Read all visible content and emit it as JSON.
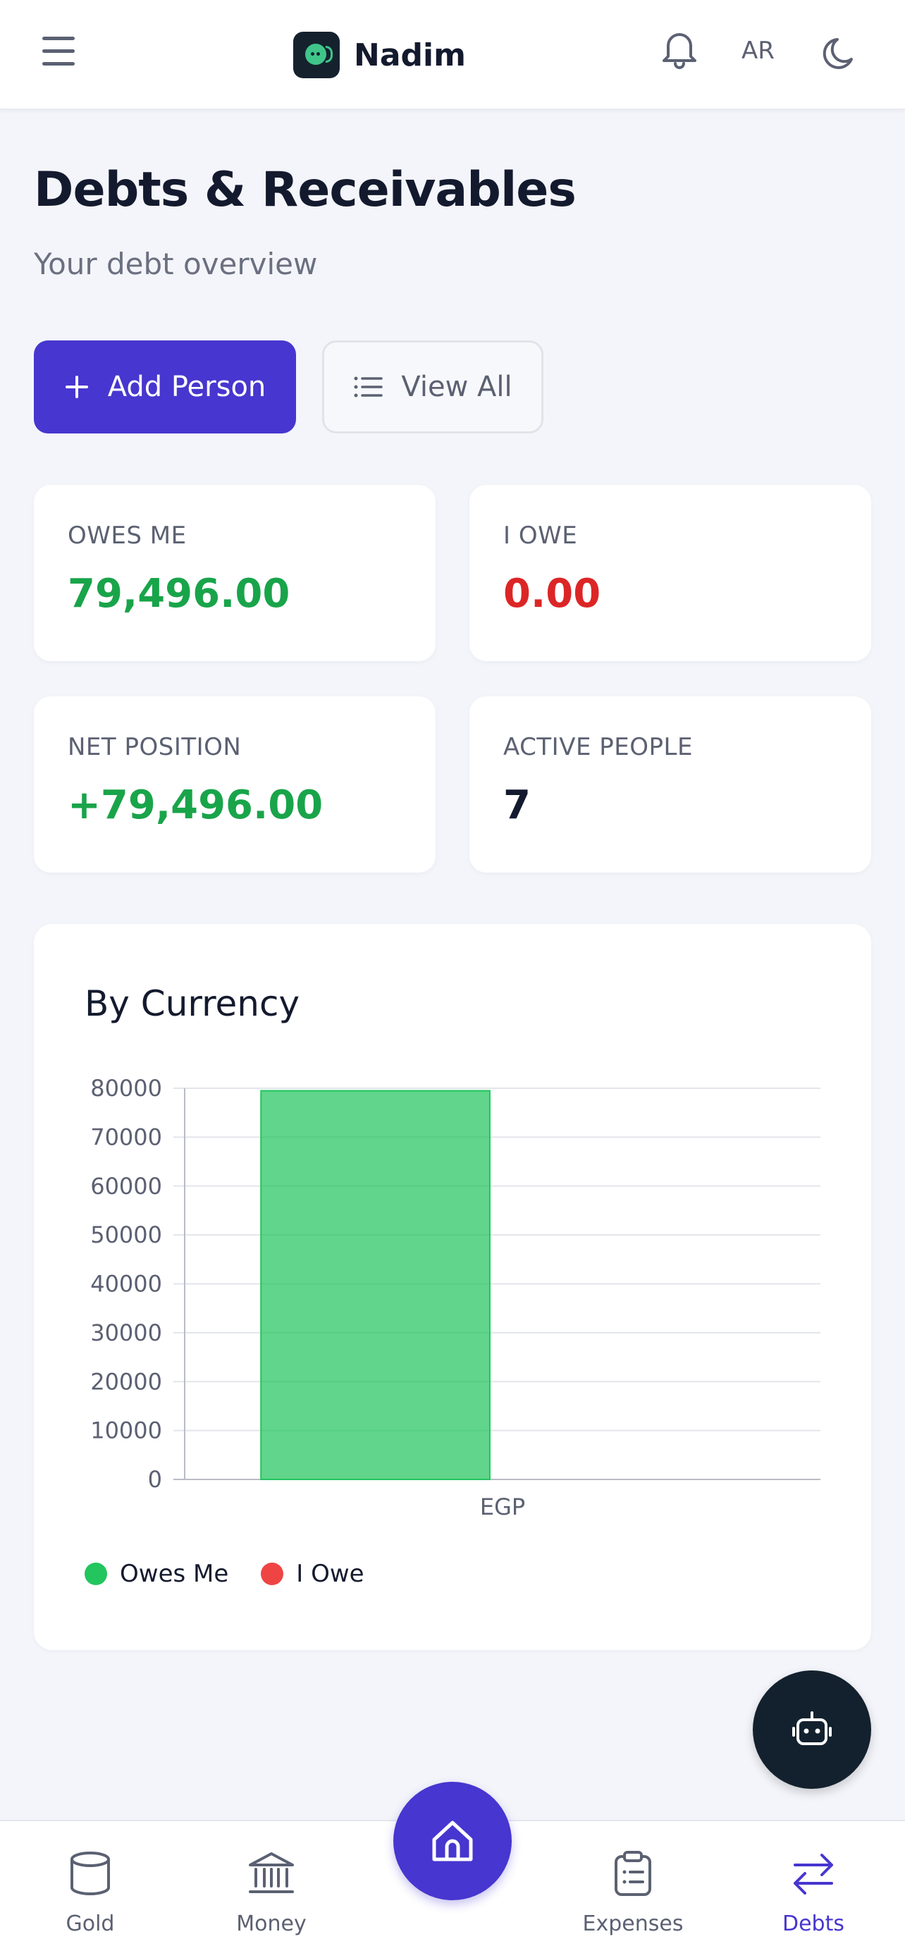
{
  "header": {
    "brand_name": "Nadim",
    "language_toggle": "AR",
    "icons": {
      "menu": "hamburger-menu-icon",
      "notifications": "bell-icon",
      "theme": "moon-icon",
      "logo": "robot-face-logo"
    }
  },
  "page": {
    "title": "Debts & Receivables",
    "subtitle": "Your debt overview"
  },
  "actions": {
    "add_person": "Add Person",
    "view_all": "View All"
  },
  "stats": {
    "owes_me": {
      "label": "OWES ME",
      "value": "79,496.00"
    },
    "i_owe": {
      "label": "I OWE",
      "value": "0.00"
    },
    "net_position": {
      "label": "NET POSITION",
      "value": "+79,496.00"
    },
    "active_people": {
      "label": "ACTIVE PEOPLE",
      "value": "7"
    }
  },
  "colors": {
    "accent": "#4736cf",
    "positive": "#19a44a",
    "negative": "#dc2626",
    "owes_me_series": "#22c55e",
    "i_owe_series": "#ef4444"
  },
  "chart_data": {
    "type": "bar",
    "title": "By Currency",
    "categories": [
      "EGP"
    ],
    "series": [
      {
        "name": "Owes Me",
        "values": [
          79496
        ],
        "color": "#22c55e"
      },
      {
        "name": "I Owe",
        "values": [
          0
        ],
        "color": "#ef4444"
      }
    ],
    "yticks": [
      "0",
      "10000",
      "20000",
      "30000",
      "40000",
      "50000",
      "60000",
      "70000",
      "80000"
    ],
    "ylim": [
      0,
      80000
    ],
    "grid": true,
    "legend": "bottom-left",
    "xlabel": "",
    "ylabel": ""
  },
  "legend": {
    "owes_me": "Owes Me",
    "i_owe": "I Owe"
  },
  "bottom_nav": {
    "items": [
      {
        "label": "Gold",
        "icon": "cylinder-icon"
      },
      {
        "label": "Money",
        "icon": "bank-icon"
      },
      {
        "label": "Home",
        "icon": "home-icon"
      },
      {
        "label": "Expenses",
        "icon": "clipboard-list-icon"
      },
      {
        "label": "Debts",
        "icon": "arrows-exchange-icon"
      }
    ],
    "active": "Debts"
  }
}
